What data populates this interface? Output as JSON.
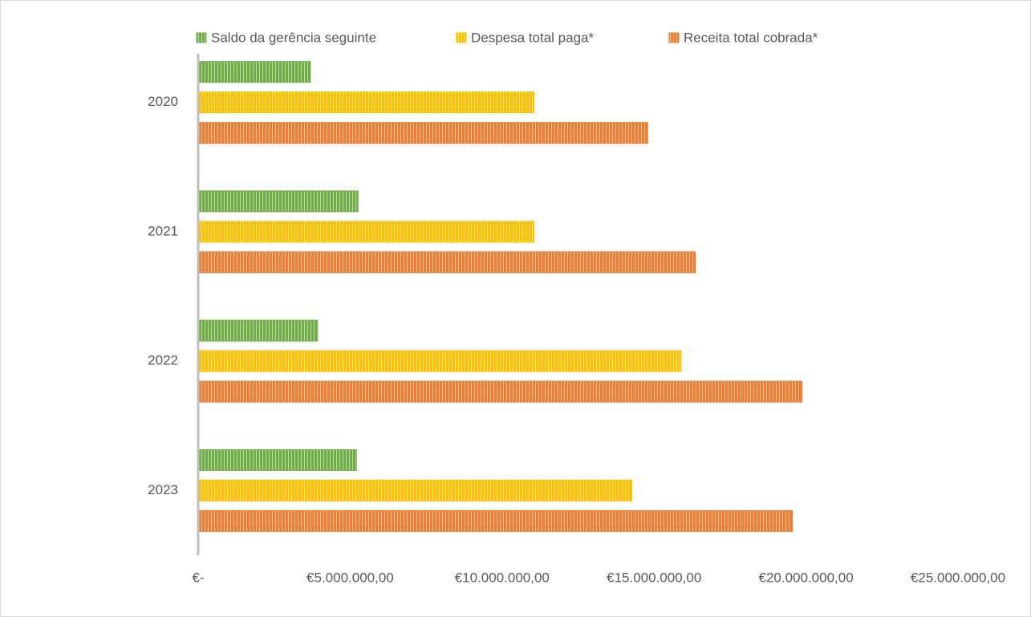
{
  "chart_data": {
    "type": "bar",
    "orientation": "horizontal",
    "categories": [
      "2020",
      "2021",
      "2022",
      "2023"
    ],
    "series": [
      {
        "name": "Saldo da gerência seguinte",
        "color": "#70ad47",
        "values": [
          3690000,
          5260000,
          3930000,
          5210000
        ]
      },
      {
        "name": "Despesa total paga*",
        "color": "#ffc000",
        "values": [
          11050000,
          11050000,
          15890000,
          14270000
        ]
      },
      {
        "name": "Receita total cobrada*",
        "color": "#ed7d31",
        "values": [
          14790000,
          16360000,
          19870000,
          19550000
        ]
      }
    ],
    "xlim": [
      0,
      25000000
    ],
    "xticks": [
      {
        "value": 0,
        "label": "€-"
      },
      {
        "value": 5000000,
        "label": "€5.000.000,00"
      },
      {
        "value": 10000000,
        "label": "€10.000.000,00"
      },
      {
        "value": 15000000,
        "label": "€15.000.000,00"
      },
      {
        "value": 20000000,
        "label": "€20.000.000,00"
      },
      {
        "value": 25000000,
        "label": "€25.000.000,00"
      }
    ],
    "grid": false,
    "legend": "top"
  }
}
